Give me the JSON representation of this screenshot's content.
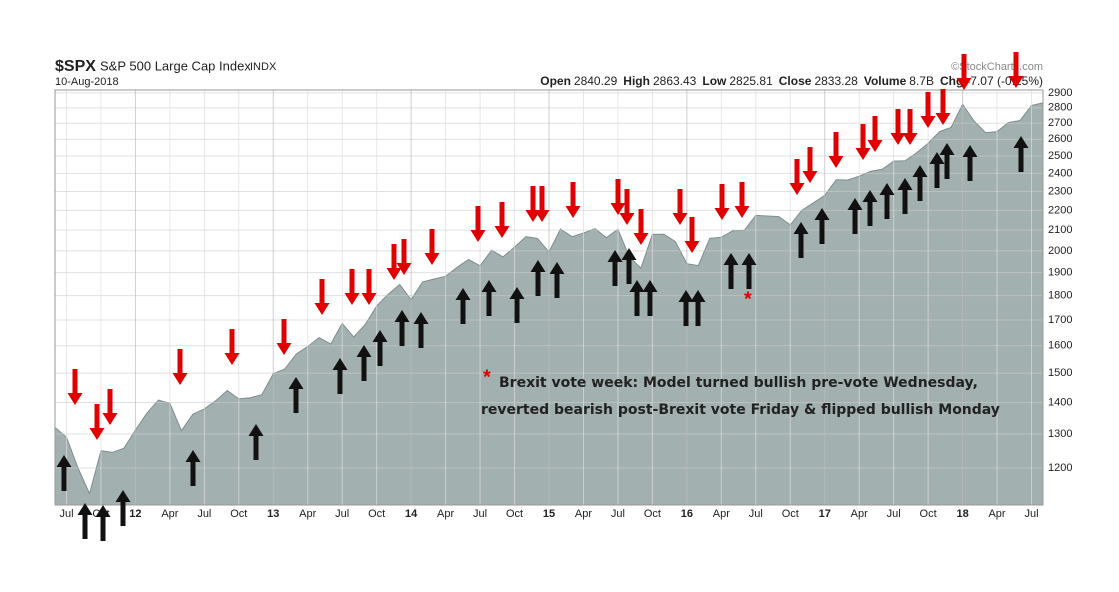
{
  "chart_data": {
    "type": "area",
    "symbol": "$SPX",
    "title": "S&P 500 Large Cap Index",
    "exchange": "INDX",
    "date": "10-Aug-2018",
    "quote": [
      {
        "label": "Open",
        "value": 2840.29
      },
      {
        "label": "High",
        "value": 2863.43
      },
      {
        "label": "Low",
        "value": 2825.81
      },
      {
        "label": "Close",
        "value": 2833.28
      },
      {
        "label": "Volume",
        "value": "8.7B"
      },
      {
        "label": "Chg",
        "value": "-7.07 (-0.25%)"
      }
    ],
    "credit": "©StockCharts.com",
    "annotation": {
      "marker": "*",
      "lines": [
        "Brexit vote week: Model turned bullish pre-vote Wednesday,",
        "reverted bearish post-Brexit vote Friday & flipped bullish Monday"
      ]
    },
    "categories": [
      null,
      "Jul",
      null,
      null,
      "Oct",
      null,
      null,
      "12",
      null,
      null,
      "Apr",
      null,
      null,
      "Jul",
      null,
      null,
      "Oct",
      null,
      null,
      "13",
      null,
      null,
      "Apr",
      null,
      null,
      "Jul",
      null,
      null,
      "Oct",
      null,
      null,
      "14",
      null,
      null,
      "Apr",
      null,
      null,
      "Jul",
      null,
      null,
      "Oct",
      null,
      null,
      "15",
      null,
      null,
      "Apr",
      null,
      null,
      "Jul",
      null,
      null,
      "Oct",
      null,
      null,
      "16",
      null,
      null,
      "Apr",
      null,
      null,
      "Jul",
      null,
      null,
      "Oct",
      null,
      null,
      "17",
      null,
      null,
      "Apr",
      null,
      null,
      "Jul",
      null,
      null,
      "Oct",
      null,
      null,
      "18",
      null,
      null,
      "Apr",
      null,
      null,
      "Jul",
      null
    ],
    "values": [
      1320,
      1290,
      1200,
      1130,
      1250,
      1245,
      1257,
      1312,
      1365,
      1408,
      1397,
      1310,
      1362,
      1379,
      1406,
      1440,
      1412,
      1416,
      1426,
      1498,
      1515,
      1569,
      1597,
      1631,
      1606,
      1686,
      1633,
      1682,
      1757,
      1806,
      1848,
      1783,
      1859,
      1872,
      1884,
      1924,
      1960,
      1931,
      2003,
      1972,
      2018,
      2068,
      2059,
      1995,
      2105,
      2068,
      2086,
      2107,
      2063,
      2104,
      1972,
      1920,
      2079,
      2080,
      2044,
      1940,
      1932,
      2060,
      2065,
      2097,
      2099,
      2174,
      2171,
      2168,
      2126,
      2199,
      2239,
      2279,
      2364,
      2363,
      2384,
      2412,
      2423,
      2470,
      2472,
      2519,
      2575,
      2648,
      2674,
      2824,
      2714,
      2641,
      2648,
      2705,
      2718,
      2816,
      2833
    ],
    "color": "#a3b0b0",
    "ylim": [
      1100,
      2920
    ],
    "yticks": [
      1200,
      1300,
      1400,
      1500,
      1600,
      1700,
      1800,
      1900,
      2000,
      2100,
      2200,
      2300,
      2400,
      2500,
      2600,
      2700,
      2800,
      2900
    ],
    "log_scale": true,
    "grid": true
  }
}
